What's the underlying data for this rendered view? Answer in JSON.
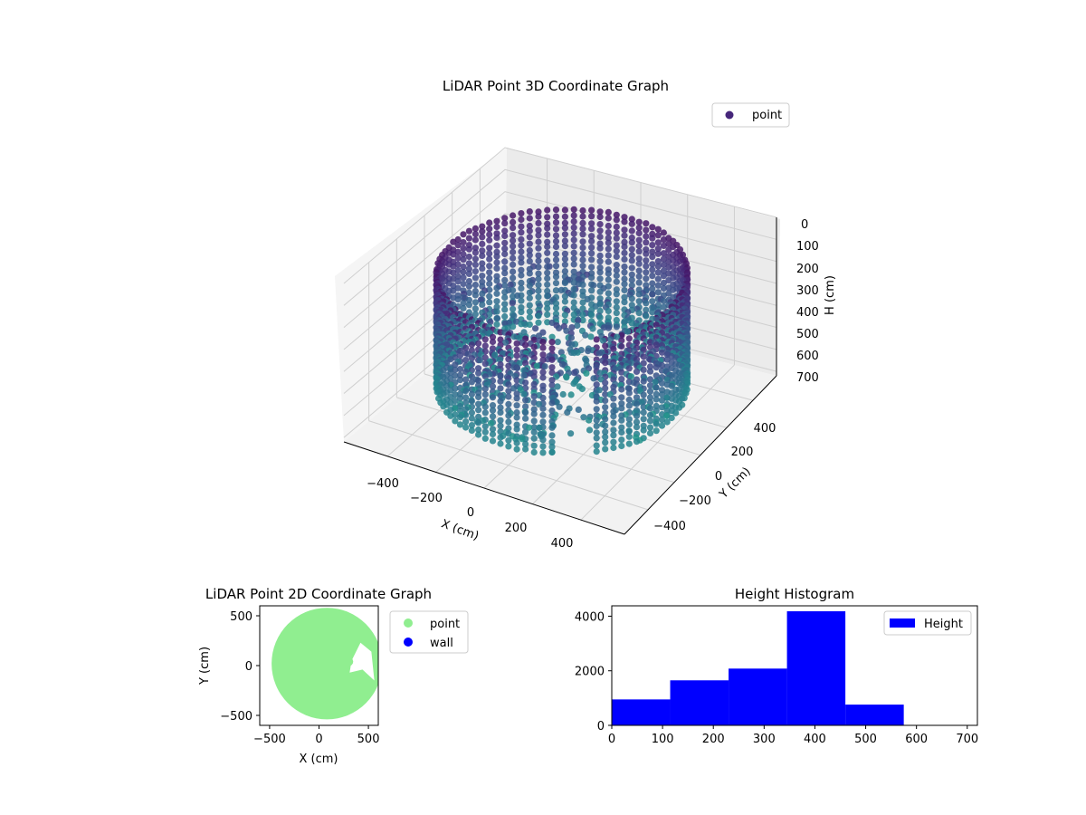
{
  "chart_data": [
    {
      "type": "scatter3d",
      "title": "LiDAR Point 3D Coordinate Graph",
      "xlabel": "X (cm)",
      "ylabel": "Y (cm)",
      "zlabel": "H (cm)",
      "xticks": [
        "−400",
        "−200",
        "0",
        "200",
        "400"
      ],
      "yticks": [
        "400",
        "200",
        "0",
        "−200",
        "−400"
      ],
      "zticks": [
        "0",
        "100",
        "200",
        "300",
        "400",
        "500",
        "600",
        "700"
      ],
      "xlim": [
        -580,
        580
      ],
      "ylim": [
        -580,
        580
      ],
      "zlim": [
        0,
        720
      ],
      "zinverted": true,
      "legend": [
        {
          "label": "point",
          "color": "#46267a"
        }
      ],
      "legend_position": "upper right",
      "colormap": "viridis",
      "structure": {
        "wall_radius": 560,
        "wall_height_range": [
          80,
          600
        ],
        "interior_points": 450
      }
    },
    {
      "type": "scatter",
      "title": "LiDAR Point 2D Coordinate Graph",
      "xlabel": "X (cm)",
      "ylabel": "Y (cm)",
      "xticks": [
        "−500",
        "0",
        "500"
      ],
      "yticks": [
        "500",
        "0",
        "−500"
      ],
      "xlim": [
        -600,
        600
      ],
      "ylim": [
        -600,
        600
      ],
      "series": [
        {
          "name": "point",
          "color": "#90ee90"
        },
        {
          "name": "wall",
          "color": "#0000ff"
        }
      ],
      "legend_position": "outside right"
    },
    {
      "type": "bar",
      "title": "Height Histogram",
      "xlabel": "",
      "ylabel": "",
      "bin_edges": [
        0,
        115,
        230,
        345,
        460,
        575,
        690
      ],
      "values": [
        950,
        1650,
        2080,
        4180,
        760,
        0
      ],
      "xlim": [
        0,
        720
      ],
      "ylim": [
        0,
        4380
      ],
      "xticks": [
        "0",
        "100",
        "200",
        "300",
        "400",
        "500",
        "600",
        "700"
      ],
      "yticks": [
        "0",
        "2000",
        "4000"
      ],
      "series": [
        {
          "name": "Height",
          "color": "#0000ff"
        }
      ],
      "legend_position": "upper right"
    }
  ]
}
